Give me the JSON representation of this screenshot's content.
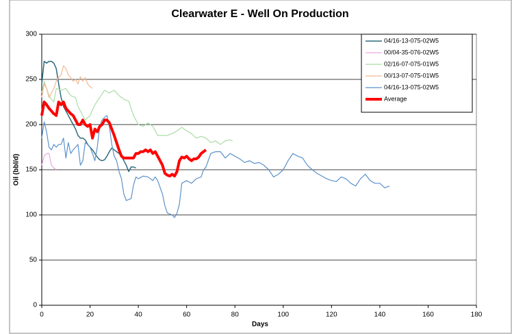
{
  "chart_data": {
    "type": "line",
    "title": "Clearwater E - Well On Production",
    "x_label": "Days",
    "y_label": "Oil (bbl/d)",
    "xlim": [
      0,
      180
    ],
    "xticks": [
      0,
      20,
      40,
      60,
      80,
      100,
      120,
      140,
      160,
      180
    ],
    "ylim": [
      0,
      300
    ],
    "yticks": [
      0,
      50,
      100,
      150,
      200,
      250,
      300
    ],
    "grid": true,
    "legend": "top-right",
    "series": [
      {
        "name": "04/16-13-075-02W5",
        "color": "#2b6a7c",
        "width": 1.5,
        "x": [
          0,
          1,
          2,
          3,
          4,
          5,
          6,
          7,
          8,
          9,
          10,
          11,
          12,
          13,
          14,
          15,
          16,
          17,
          18,
          19,
          20,
          21,
          22,
          23,
          24,
          25,
          26,
          27,
          28,
          29,
          30,
          31,
          32,
          33,
          34,
          35,
          36,
          37,
          38,
          39
        ],
        "values": [
          245,
          270,
          268,
          270,
          270,
          268,
          262,
          245,
          230,
          220,
          215,
          210,
          205,
          200,
          195,
          188,
          185,
          185,
          183,
          178,
          175,
          172,
          168,
          164,
          161,
          160,
          161,
          165,
          170,
          174,
          172,
          170,
          168,
          165,
          160,
          155,
          148,
          153,
          153,
          152
        ]
      },
      {
        "name": "00/04-35-076-02W5",
        "color": "#e9a8e2",
        "width": 1.2,
        "x": [
          0,
          1,
          2,
          3,
          4,
          5,
          6
        ],
        "values": [
          155,
          165,
          168,
          168,
          155,
          152,
          150
        ]
      },
      {
        "name": "02/16-07-075-01W5",
        "color": "#a9dca5",
        "width": 1.2,
        "x": [
          0,
          1,
          2,
          3,
          4,
          5,
          6,
          8,
          10,
          12,
          14,
          15,
          18,
          20,
          22,
          24,
          26,
          28,
          30,
          32,
          34,
          36,
          38,
          40,
          42,
          44,
          46,
          48,
          50,
          52,
          54,
          56,
          58,
          60,
          62,
          64,
          66,
          68,
          70,
          72,
          74,
          76,
          78,
          79
        ],
        "values": [
          235,
          248,
          240,
          232,
          228,
          225,
          240,
          238,
          240,
          232,
          230,
          220,
          205,
          210,
          222,
          230,
          238,
          235,
          238,
          232,
          228,
          226,
          210,
          200,
          198,
          202,
          198,
          188,
          188,
          188,
          190,
          193,
          197,
          193,
          190,
          185,
          187,
          185,
          180,
          182,
          178,
          182,
          183,
          182
        ]
      },
      {
        "name": "00/13-07-075-01W5",
        "color": "#f4b791",
        "width": 1.2,
        "x": [
          0,
          1,
          2,
          3,
          4,
          5,
          6,
          7,
          8,
          9,
          10,
          11,
          12,
          13,
          14,
          15,
          16,
          17,
          18,
          19,
          20,
          21
        ],
        "values": [
          230,
          245,
          240,
          230,
          235,
          240,
          248,
          252,
          255,
          265,
          262,
          255,
          252,
          248,
          250,
          245,
          253,
          248,
          252,
          245,
          242,
          240
        ]
      },
      {
        "name": "04/16-13-075-02W5",
        "color": "#5b90c9",
        "width": 1.2,
        "x": [
          0,
          1,
          2,
          3,
          4,
          5,
          6,
          7,
          8,
          9,
          10,
          11,
          12,
          13,
          14,
          15,
          16,
          17,
          18,
          19,
          20,
          21,
          22,
          23,
          24,
          25,
          26,
          27,
          28,
          29,
          30,
          31,
          32,
          33,
          34,
          35,
          36,
          37,
          38,
          39,
          40,
          42,
          44,
          46,
          47,
          48,
          50,
          51,
          52,
          54,
          55,
          56,
          57,
          58,
          60,
          62,
          64,
          66,
          67,
          68,
          70,
          72,
          74,
          76,
          78,
          80,
          82,
          84,
          86,
          88,
          90,
          92,
          94,
          96,
          98,
          100,
          102,
          104,
          106,
          108,
          110,
          112,
          114,
          116,
          118,
          120,
          122,
          124,
          126,
          128,
          130,
          132,
          134,
          136,
          138,
          140,
          142,
          144
        ],
        "values": [
          185,
          203,
          192,
          175,
          172,
          178,
          175,
          178,
          178,
          185,
          163,
          180,
          168,
          172,
          175,
          178,
          155,
          160,
          180,
          178,
          175,
          168,
          160,
          175,
          198,
          205,
          208,
          210,
          198,
          178,
          165,
          160,
          148,
          140,
          123,
          116,
          117,
          118,
          133,
          142,
          140,
          143,
          142,
          138,
          142,
          138,
          123,
          110,
          102,
          100,
          97,
          102,
          112,
          135,
          138,
          135,
          140,
          142,
          150,
          153,
          168,
          170,
          170,
          163,
          168,
          165,
          162,
          158,
          160,
          157,
          158,
          155,
          150,
          142,
          145,
          150,
          160,
          168,
          165,
          163,
          155,
          150,
          146,
          143,
          140,
          138,
          137,
          142,
          140,
          135,
          132,
          140,
          145,
          138,
          135,
          135,
          130,
          132
        ]
      },
      {
        "name": "Average",
        "color": "#ff0000",
        "width": 4,
        "x": [
          0,
          1,
          2,
          3,
          4,
          5,
          6,
          7,
          8,
          9,
          10,
          11,
          12,
          13,
          14,
          15,
          16,
          17,
          18,
          19,
          20,
          21,
          22,
          23,
          24,
          25,
          26,
          27,
          28,
          29,
          30,
          31,
          32,
          33,
          34,
          36,
          38,
          39,
          40,
          41,
          42,
          43,
          44,
          45,
          46,
          47,
          48,
          49,
          50,
          51,
          52,
          53,
          54,
          55,
          56,
          57,
          58,
          59,
          60,
          61,
          62,
          63,
          64,
          65,
          66,
          67,
          68
        ],
        "values": [
          210,
          225,
          222,
          218,
          215,
          212,
          210,
          225,
          222,
          225,
          218,
          215,
          212,
          210,
          205,
          200,
          200,
          205,
          200,
          198,
          200,
          185,
          195,
          192,
          198,
          200,
          205,
          205,
          202,
          195,
          188,
          180,
          172,
          165,
          163,
          163,
          163,
          168,
          168,
          170,
          170,
          172,
          170,
          172,
          168,
          170,
          165,
          160,
          155,
          146,
          144,
          143,
          145,
          143,
          148,
          160,
          164,
          163,
          165,
          162,
          160,
          162,
          162,
          164,
          168,
          170,
          172
        ]
      }
    ]
  }
}
